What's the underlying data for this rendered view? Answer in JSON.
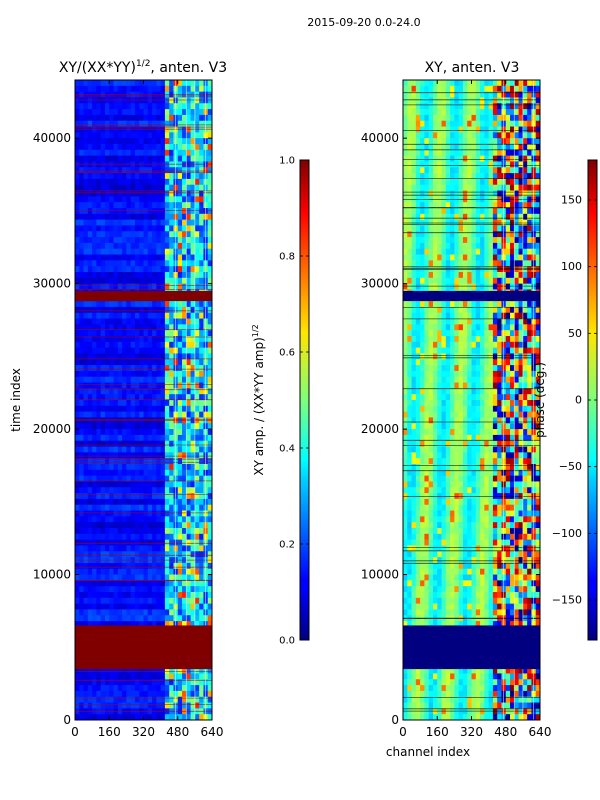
{
  "suptitle": "2015-09-20 0.0-24.0",
  "chart_data": [
    {
      "type": "heatmap",
      "title_main": "XY/(XX*YY)",
      "title_sup": "1/2",
      "title_rest": ", anten. V3",
      "xlabel": "",
      "ylabel": "time index",
      "xlim": [
        0,
        640
      ],
      "ylim": [
        0,
        44000
      ],
      "xticks": [
        0,
        160,
        320,
        480,
        640
      ],
      "yticks": [
        0,
        10000,
        20000,
        30000,
        40000
      ],
      "xtick_labels": [
        "0",
        "160",
        "320",
        "480",
        "640"
      ],
      "ytick_labels": [
        "0",
        "10000",
        "20000",
        "30000",
        "40000"
      ],
      "colormap": "jet",
      "colorbar": {
        "label_main": "XY amp. / (XX*YY amp)",
        "label_sup": "1/2",
        "vmin": 0.0,
        "vmax": 1.0,
        "ticks": [
          0.0,
          0.2,
          0.4,
          0.6,
          0.8,
          1.0
        ],
        "tick_labels": [
          "0.0",
          "0.2",
          "0.4",
          "0.6",
          "0.8",
          "1.0"
        ]
      },
      "flagged_bands": [
        [
          3500,
          6500
        ],
        [
          28800,
          29500
        ]
      ],
      "flagged_value": 1.0
    },
    {
      "type": "heatmap",
      "title_main": "XY, anten. V3",
      "xlabel": "channel index",
      "ylabel": "",
      "xlim": [
        0,
        640
      ],
      "ylim": [
        0,
        44000
      ],
      "xticks": [
        0,
        160,
        320,
        480,
        640
      ],
      "yticks": [
        0,
        10000,
        20000,
        30000,
        40000
      ],
      "xtick_labels": [
        "0",
        "160",
        "320",
        "480",
        "640"
      ],
      "ytick_labels": [
        "0",
        "10000",
        "20000",
        "30000",
        "40000"
      ],
      "colormap": "jet",
      "colorbar": {
        "label_main": "phase (deg.)",
        "vmin": -180,
        "vmax": 180,
        "ticks": [
          -150,
          -100,
          -50,
          0,
          50,
          100,
          150
        ],
        "tick_labels": [
          "−150",
          "−100",
          "−50",
          "0",
          "50",
          "100",
          "150"
        ]
      },
      "flagged_bands": [
        [
          3500,
          6500
        ],
        [
          28800,
          29500
        ]
      ],
      "flagged_value": -180
    }
  ]
}
